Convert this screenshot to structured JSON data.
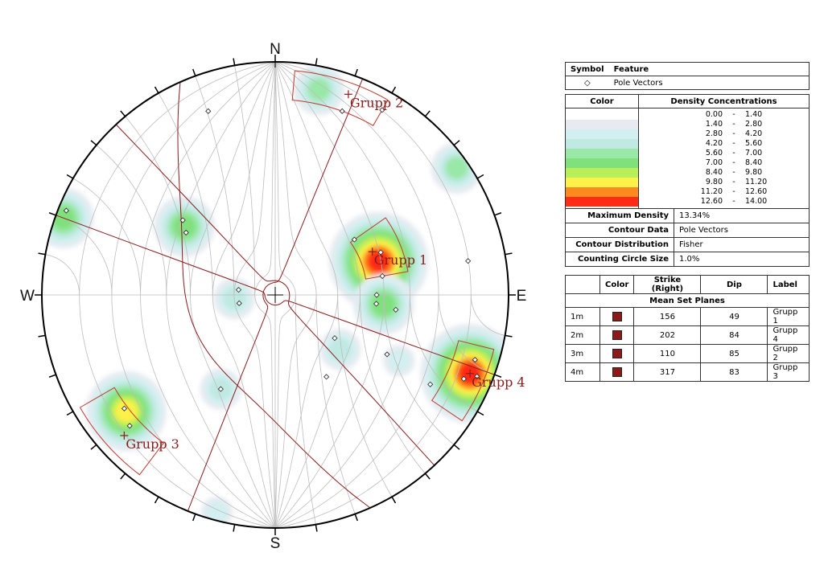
{
  "compass": {
    "n": "N",
    "e": "E",
    "s": "S",
    "w": "W"
  },
  "colors": {
    "great_circle": "#8b1a1a",
    "grid": "#bdbdbd",
    "density_ramp": [
      "#ffffff",
      "#e7ebf1",
      "#d3eff0",
      "#bfe9e2",
      "#9ae8a8",
      "#7fe07c",
      "#b8ee58",
      "#fdf14a",
      "#fd8a1e",
      "#ff2b14"
    ]
  },
  "plot": {
    "poles": [
      {
        "trend": 340,
        "plunge": 10
      },
      {
        "trend": 20,
        "plunge": 10
      },
      {
        "trend": 30,
        "plunge": 5
      },
      {
        "trend": 55,
        "plunge": 45
      },
      {
        "trend": 68,
        "plunge": 38
      },
      {
        "trend": 80,
        "plunge": 40
      },
      {
        "trend": 90,
        "plunge": 43
      },
      {
        "trend": 95,
        "plunge": 43
      },
      {
        "trend": 97,
        "plunge": 35
      },
      {
        "trend": 80,
        "plunge": 10
      },
      {
        "trend": 108,
        "plunge": 6
      },
      {
        "trend": 112,
        "plunge": 4
      },
      {
        "trend": 114,
        "plunge": 7
      },
      {
        "trend": 120,
        "plunge": 15
      },
      {
        "trend": 118,
        "plunge": 33
      },
      {
        "trend": 126,
        "plunge": 55
      },
      {
        "trend": 148,
        "plunge": 45
      },
      {
        "trend": 210,
        "plunge": 40
      },
      {
        "trend": 228,
        "plunge": 10
      },
      {
        "trend": 233,
        "plunge": 12
      },
      {
        "trend": 257,
        "plunge": 72
      },
      {
        "trend": 278,
        "plunge": 72
      },
      {
        "trend": 305,
        "plunge": 40
      },
      {
        "trend": 309,
        "plunge": 36
      },
      {
        "trend": 292,
        "plunge": 2
      }
    ],
    "density_blobs": [
      {
        "trend": 12,
        "plunge": 6,
        "peak": 6.2
      },
      {
        "trend": 72,
        "plunge": 40,
        "peak": 13.3
      },
      {
        "trend": 95,
        "plunge": 40,
        "peak": 8.0
      },
      {
        "trend": 112,
        "plunge": 6,
        "peak": 13.34
      },
      {
        "trend": 232,
        "plunge": 12,
        "peak": 10.5
      },
      {
        "trend": 307,
        "plunge": 38,
        "peak": 7.6
      },
      {
        "trend": 265,
        "plunge": 70,
        "peak": 4.5
      },
      {
        "trend": 210,
        "plunge": 40,
        "peak": 4.2
      },
      {
        "trend": 130,
        "plunge": 50,
        "peak": 4.3
      },
      {
        "trend": 118,
        "plunge": 28,
        "peak": 3.5
      },
      {
        "trend": 290,
        "plunge": 2,
        "peak": 8.0
      },
      {
        "trend": 55,
        "plunge": 3,
        "peak": 6.5
      },
      {
        "trend": 195,
        "plunge": 2,
        "peak": 3.0
      }
    ],
    "great_circles": [
      {
        "strike": 156,
        "dip": 49
      },
      {
        "strike": 202,
        "dip": 84
      },
      {
        "strike": 110,
        "dip": 85
      },
      {
        "strike": 317,
        "dip": 83
      }
    ],
    "sets": [
      {
        "label": "Grupp 1",
        "mean_trend": 66,
        "mean_plunge": 41,
        "box_trend": [
          55,
          80
        ],
        "box_plunge": [
          30,
          47
        ]
      },
      {
        "label": "Grupp 2",
        "mean_trend": 20,
        "mean_plunge": 5,
        "box_trend": [
          5,
          30
        ],
        "box_plunge": [
          2,
          10
        ]
      },
      {
        "label": "Grupp 3",
        "mean_trend": 227,
        "mean_plunge": 7,
        "box_trend": [
          217,
          240
        ],
        "box_plunge": [
          2,
          13
        ]
      },
      {
        "label": "Grupp 4",
        "mean_trend": 112,
        "mean_plunge": 6,
        "box_trend": [
          104,
          124
        ],
        "box_plunge": [
          2,
          12
        ]
      }
    ]
  },
  "symbol_table": {
    "headers": {
      "symbol": "Symbol",
      "feature": "Feature"
    },
    "rows": [
      {
        "symbol": "◇",
        "feature": "Pole Vectors"
      }
    ]
  },
  "density_table": {
    "headers": {
      "color": "Color",
      "concentrations": "Density Concentrations"
    },
    "ranges": [
      {
        "from": "0.00",
        "sep": "-",
        "to": "1.40"
      },
      {
        "from": "1.40",
        "sep": "-",
        "to": "2.80"
      },
      {
        "from": "2.80",
        "sep": "-",
        "to": "4.20"
      },
      {
        "from": "4.20",
        "sep": "-",
        "to": "5.60"
      },
      {
        "from": "5.60",
        "sep": "-",
        "to": "7.00"
      },
      {
        "from": "7.00",
        "sep": "-",
        "to": "8.40"
      },
      {
        "from": "8.40",
        "sep": "-",
        "to": "9.80"
      },
      {
        "from": "9.80",
        "sep": "-",
        "to": "11.20"
      },
      {
        "from": "11.20",
        "sep": "-",
        "to": "12.60"
      },
      {
        "from": "12.60",
        "sep": "-",
        "to": "14.00"
      }
    ],
    "stats": [
      {
        "key": "Maximum Density",
        "value": "13.34%"
      },
      {
        "key": "Contour Data",
        "value": "Pole Vectors"
      },
      {
        "key": "Contour Distribution",
        "value": "Fisher"
      },
      {
        "key": "Counting Circle Size",
        "value": "1.0%"
      }
    ]
  },
  "mean_table": {
    "headers": {
      "id": "",
      "color": "Color",
      "strike": "Strike (Right)",
      "dip": "Dip",
      "label": "Label"
    },
    "title": "Mean Set Planes",
    "rows": [
      {
        "id": "1m",
        "strike": "156",
        "dip": "49",
        "label": "Grupp 1"
      },
      {
        "id": "2m",
        "strike": "202",
        "dip": "84",
        "label": "Grupp 4"
      },
      {
        "id": "3m",
        "strike": "110",
        "dip": "85",
        "label": "Grupp 2"
      },
      {
        "id": "4m",
        "strike": "317",
        "dip": "83",
        "label": "Grupp 3"
      }
    ]
  }
}
